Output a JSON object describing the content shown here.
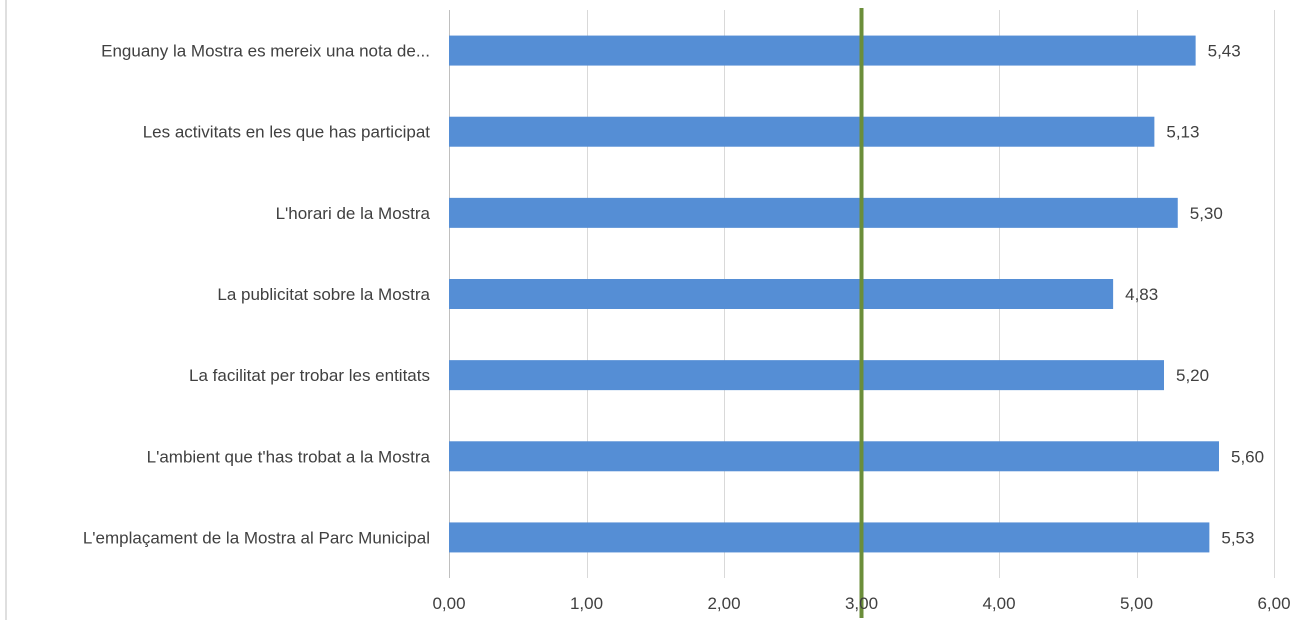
{
  "chart_data": {
    "type": "bar",
    "orientation": "horizontal",
    "categories": [
      "Enguany la Mostra es mereix una nota de...",
      "Les activitats en les que has participat",
      "L'horari de la Mostra",
      "La publicitat sobre la Mostra",
      "La facilitat per trobar les entitats",
      "L'ambient que t'has trobat a la Mostra",
      "L'emplaçament de la Mostra al Parc Municipal"
    ],
    "values": [
      5.43,
      5.13,
      5.3,
      4.83,
      5.2,
      5.6,
      5.53
    ],
    "value_labels": [
      "5,43",
      "5,13",
      "5,30",
      "4,83",
      "5,20",
      "5,60",
      "5,53"
    ],
    "xlim": [
      0,
      6
    ],
    "ticks": [
      0,
      1,
      2,
      3,
      4,
      5,
      6
    ],
    "tick_labels": [
      "0,00",
      "1,00",
      "2,00",
      "3,00",
      "4,00",
      "5,00",
      "6,00"
    ],
    "reference_line": {
      "value": 3.0,
      "color": "#6B8E3A"
    },
    "bar_color": "#558ED5",
    "gridlines": "vertical",
    "gridline_color": "#D9D9D9",
    "axis_color": "#BFBFBF",
    "title": "",
    "xlabel": "",
    "ylabel": "",
    "legend": "none"
  }
}
